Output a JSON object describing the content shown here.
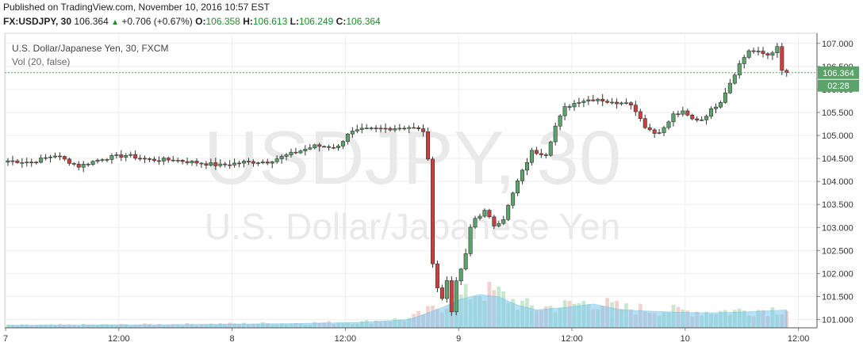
{
  "header": {
    "published": "Published on TradingView.com, November 10, 2016 10:57 EST",
    "symbol": "FX:USDJPY, 30",
    "last": "106.364",
    "change": "+0.706 (+0.67%)",
    "o_label": "O:",
    "o_value": "106.358",
    "h_label": "H:",
    "h_value": "106.613",
    "l_label": "L:",
    "l_value": "106.249",
    "c_label": "C:",
    "c_value": "106.364"
  },
  "chart_data": {
    "type": "candlestick",
    "legend": {
      "title": "U.S. Dollar/Japanese Yen, 30, FXCM",
      "volume": "Vol (20, false)"
    },
    "watermark": {
      "symbol": "USDJPY, 30",
      "name": "U.S. Dollar/Japanese Yen"
    },
    "y_ticks": [
      "107.000",
      "106.500",
      "106.000",
      "105.500",
      "105.000",
      "104.500",
      "104.000",
      "103.500",
      "103.000",
      "102.500",
      "102.000",
      "101.500",
      "101.000"
    ],
    "ylim": [
      100.82,
      107.22
    ],
    "x_ticks": [
      {
        "label": "7",
        "t": 0
      },
      {
        "label": "12:00",
        "t": 24
      },
      {
        "label": "8",
        "t": 48
      },
      {
        "label": "12:00",
        "t": 72
      },
      {
        "label": "9",
        "t": 96
      },
      {
        "label": "12:00",
        "t": 120
      },
      {
        "label": "10",
        "t": 144
      },
      {
        "label": "12:00",
        "t": 168
      }
    ],
    "last_price_label": "106.364",
    "countdown_label": "02:28",
    "last_price": 106.364,
    "close_anchors": [
      [
        0,
        104.45
      ],
      [
        5,
        104.42
      ],
      [
        10,
        104.57
      ],
      [
        15,
        104.33
      ],
      [
        20,
        104.5
      ],
      [
        25,
        104.57
      ],
      [
        30,
        104.47
      ],
      [
        35,
        104.47
      ],
      [
        40,
        104.41
      ],
      [
        45,
        104.35
      ],
      [
        50,
        104.42
      ],
      [
        55,
        104.43
      ],
      [
        60,
        104.6
      ],
      [
        65,
        104.77
      ],
      [
        70,
        104.75
      ],
      [
        72,
        105.05
      ],
      [
        75,
        105.12
      ],
      [
        80,
        105.15
      ],
      [
        85,
        105.18
      ],
      [
        88,
        105.1
      ],
      [
        89,
        104.45
      ],
      [
        90,
        102.25
      ],
      [
        91,
        101.7
      ],
      [
        92,
        101.45
      ],
      [
        93,
        101.85
      ],
      [
        94,
        101.2
      ],
      [
        95,
        101.8
      ],
      [
        96,
        102.1
      ],
      [
        97,
        102.4
      ],
      [
        98,
        103.0
      ],
      [
        99,
        103.2
      ],
      [
        101,
        103.35
      ],
      [
        103,
        103.05
      ],
      [
        105,
        103.2
      ],
      [
        108,
        104.0
      ],
      [
        111,
        104.65
      ],
      [
        114,
        104.6
      ],
      [
        116,
        105.2
      ],
      [
        118,
        105.6
      ],
      [
        121,
        105.75
      ],
      [
        125,
        105.8
      ],
      [
        128,
        105.7
      ],
      [
        131,
        105.75
      ],
      [
        133,
        105.55
      ],
      [
        135,
        105.2
      ],
      [
        137,
        105.05
      ],
      [
        139,
        105.15
      ],
      [
        141,
        105.45
      ],
      [
        143,
        105.5
      ],
      [
        145,
        105.35
      ],
      [
        147,
        105.35
      ],
      [
        149,
        105.55
      ],
      [
        151,
        105.75
      ],
      [
        153,
        106.15
      ],
      [
        155,
        106.55
      ],
      [
        157,
        106.85
      ],
      [
        159,
        106.8
      ],
      [
        161,
        106.75
      ],
      [
        163,
        106.9
      ],
      [
        164,
        106.4
      ],
      [
        165,
        106.364
      ]
    ],
    "volume_anchors": [
      [
        0,
        4
      ],
      [
        30,
        5
      ],
      [
        60,
        7
      ],
      [
        75,
        9
      ],
      [
        85,
        14
      ],
      [
        88,
        22
      ],
      [
        92,
        34
      ],
      [
        96,
        48
      ],
      [
        100,
        56
      ],
      [
        104,
        52
      ],
      [
        108,
        38
      ],
      [
        112,
        30
      ],
      [
        118,
        34
      ],
      [
        124,
        40
      ],
      [
        130,
        30
      ],
      [
        136,
        28
      ],
      [
        142,
        26
      ],
      [
        148,
        25
      ],
      [
        154,
        26
      ],
      [
        160,
        28
      ],
      [
        165,
        30
      ]
    ]
  }
}
